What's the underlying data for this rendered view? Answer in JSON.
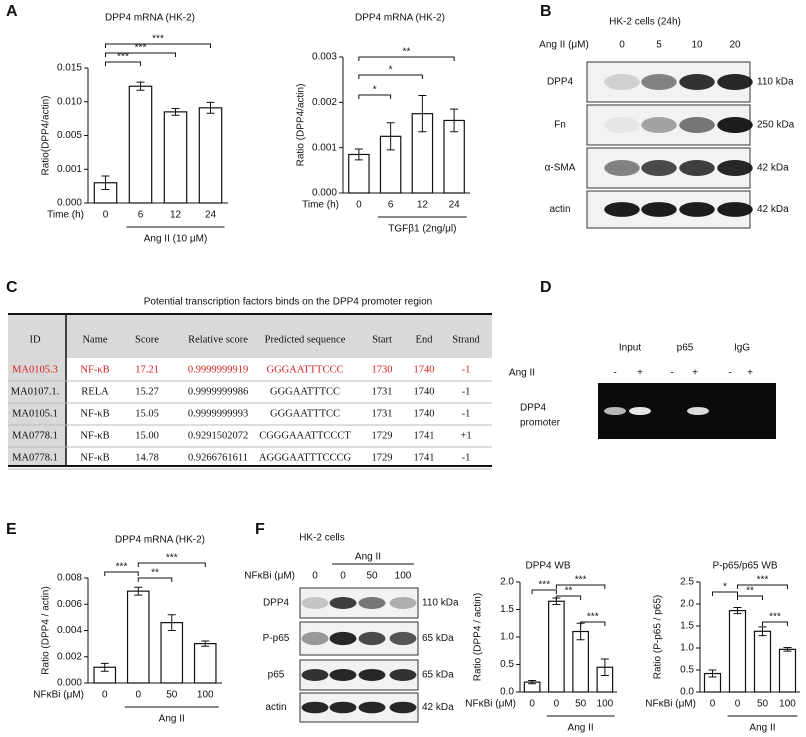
{
  "panel_labels": [
    "A",
    "B",
    "C",
    "D",
    "E",
    "F"
  ],
  "chart_data": [
    {
      "type": "bar",
      "title": "DPP4 mRNA (HK-2)",
      "ylabel": "Ratio(DPP4/actin)",
      "xlabel": "Time (h)",
      "group_label": "Ang II (10 μM)",
      "categories": [
        "0",
        "6",
        "12",
        "24"
      ],
      "values": [
        0.0006,
        0.0123,
        0.0085,
        0.0091
      ],
      "errors": [
        0.0002,
        0.0006,
        0.0005,
        0.0008
      ],
      "color": "#ffffff",
      "ylim": [
        0,
        0.015
      ],
      "yticks": [
        {
          "value": 0,
          "label": "0.000"
        },
        0.001,
        0.005,
        {
          "value": 0.01,
          "label": "0.010"
        },
        0.015
      ],
      "annotations": [
        "***",
        "***",
        "***"
      ]
    },
    {
      "type": "bar",
      "title": "DPP4 mRNA (HK-2)",
      "ylabel": "Ratio (DPP4/actin)",
      "xlabel": "Time (h)",
      "group_label": "TGFβ1 (2ng/μl)",
      "categories": [
        "0",
        "6",
        "12",
        "24"
      ],
      "values": [
        0.00085,
        0.00125,
        0.00175,
        0.0016
      ],
      "errors": [
        0.00012,
        0.0003,
        0.0004,
        0.00025
      ],
      "color": "#ffffff",
      "ylim": [
        0,
        0.003
      ],
      "yticks": [
        {
          "value": 0,
          "label": "0.000"
        },
        0.001,
        0.002,
        0.003
      ],
      "annotations": [
        "*",
        "*",
        "**"
      ]
    },
    {
      "type": "bar",
      "title": "DPP4 mRNA (HK-2)",
      "ylabel": "Ratio (DPP4 / actin)",
      "xlabel": "NFκBi (μM)",
      "group_label": "Ang II",
      "categories": [
        "0",
        "0",
        "50",
        "100"
      ],
      "values": [
        0.0012,
        0.007,
        0.0046,
        0.003
      ],
      "errors": [
        0.0003,
        0.0003,
        0.0006,
        0.0002
      ],
      "color": "#ffffff",
      "ylim": [
        0,
        0.008
      ],
      "yticks": [
        {
          "value": 0,
          "label": "0.000"
        },
        0.002,
        0.004,
        0.006,
        0.008
      ],
      "annotations": [
        "***",
        "**",
        "***"
      ]
    },
    {
      "type": "bar",
      "title": "DPP4  WB",
      "ylabel": "Ratio (DPP4 / actin)",
      "xlabel": "NFκBi (μM)",
      "group_label": "Ang II",
      "categories": [
        "0",
        "0",
        "50",
        "100"
      ],
      "values": [
        0.18,
        1.65,
        1.1,
        0.45
      ],
      "errors": [
        0.03,
        0.06,
        0.15,
        0.15
      ],
      "color": "#ffffff",
      "ylim": [
        0,
        2
      ],
      "yticks": [
        {
          "value": 0,
          "label": "0.0"
        },
        0.5,
        {
          "value": 1,
          "label": "1.0"
        },
        1.5,
        {
          "value": 2,
          "label": "2.0"
        }
      ],
      "annotations": [
        "***",
        "**",
        "***",
        "***"
      ]
    },
    {
      "type": "bar",
      "title": "P-p65/p65 WB",
      "ylabel": "Ratio (P-p65 / p65)",
      "xlabel": "NFκBi (μM)",
      "group_label": "Ang II",
      "categories": [
        "0",
        "0",
        "50",
        "100"
      ],
      "values": [
        0.42,
        1.85,
        1.38,
        0.97
      ],
      "errors": [
        0.08,
        0.07,
        0.1,
        0.04
      ],
      "color": "#ffffff",
      "ylim": [
        0,
        2.5
      ],
      "yticks": [
        {
          "value": 0,
          "label": "0.0"
        },
        0.5,
        {
          "value": 1,
          "label": "1.0"
        },
        1.5,
        {
          "value": 2,
          "label": "2.0"
        },
        2.5
      ],
      "annotations": [
        "*",
        "**",
        "***",
        "***"
      ]
    }
  ],
  "blot_b": {
    "title": "HK-2 cells (24h)",
    "treatment": "Ang II (μM)",
    "lanes": [
      "0",
      "5",
      "10",
      "20"
    ],
    "rows": [
      "DPP4",
      "Fn",
      "α-SMA",
      "actin"
    ],
    "sizes": [
      "110 kDa",
      "250 kDa",
      "42 kDa",
      "42 kDa"
    ]
  },
  "table_c": {
    "title": "Potential transcription factors binds on the DPP4 promoter region",
    "header": [
      "ID",
      "Name",
      "Score",
      "Relative score",
      "Predicted sequence",
      "Start",
      "End",
      "Strand"
    ],
    "rows": [
      [
        "MA0105.3",
        "NF-κB",
        "17.21",
        "0.9999999919",
        "GGGAATTTCCC",
        "1730",
        "1740",
        "-1"
      ],
      [
        "MA0107.1.",
        "RELA",
        "15.27",
        "0.9999999986",
        "GGGAATTTCC",
        "1731",
        "1740",
        "-1"
      ],
      [
        "MA0105.1",
        "NF-κB",
        "15.05",
        "0.9999999993",
        "GGGAATTTCC",
        "1731",
        "1740",
        "-1"
      ],
      [
        "MA0778.1",
        "NF-κB",
        "15.00",
        "0.9291502072",
        "CGGGAAATTCCCT",
        "1729",
        "1741",
        "+1"
      ],
      [
        "MA0778.1",
        "NF-κB",
        "14.78",
        "0.9266761611",
        "AGGGAATTTCCCG",
        "1729",
        "1741",
        "-1"
      ]
    ]
  },
  "gel_d": {
    "groups": [
      "Input",
      "p65",
      "IgG"
    ],
    "treatment": "Ang II",
    "signs": [
      "-",
      "+",
      "-",
      "+",
      "-",
      "+"
    ],
    "target": [
      "DPP4",
      "promoter"
    ]
  },
  "blot_f": {
    "title": "HK-2 cells",
    "treatment": "Ang II",
    "inhibitor": "NFκBi (μM)",
    "lanes": [
      "0",
      "0",
      "50",
      "100"
    ],
    "rows": [
      "DPP4",
      "P-p65",
      "p65",
      "actin"
    ],
    "sizes": [
      "110 kDa",
      "65 kDa",
      "65 kDa",
      "42 kDa"
    ]
  }
}
